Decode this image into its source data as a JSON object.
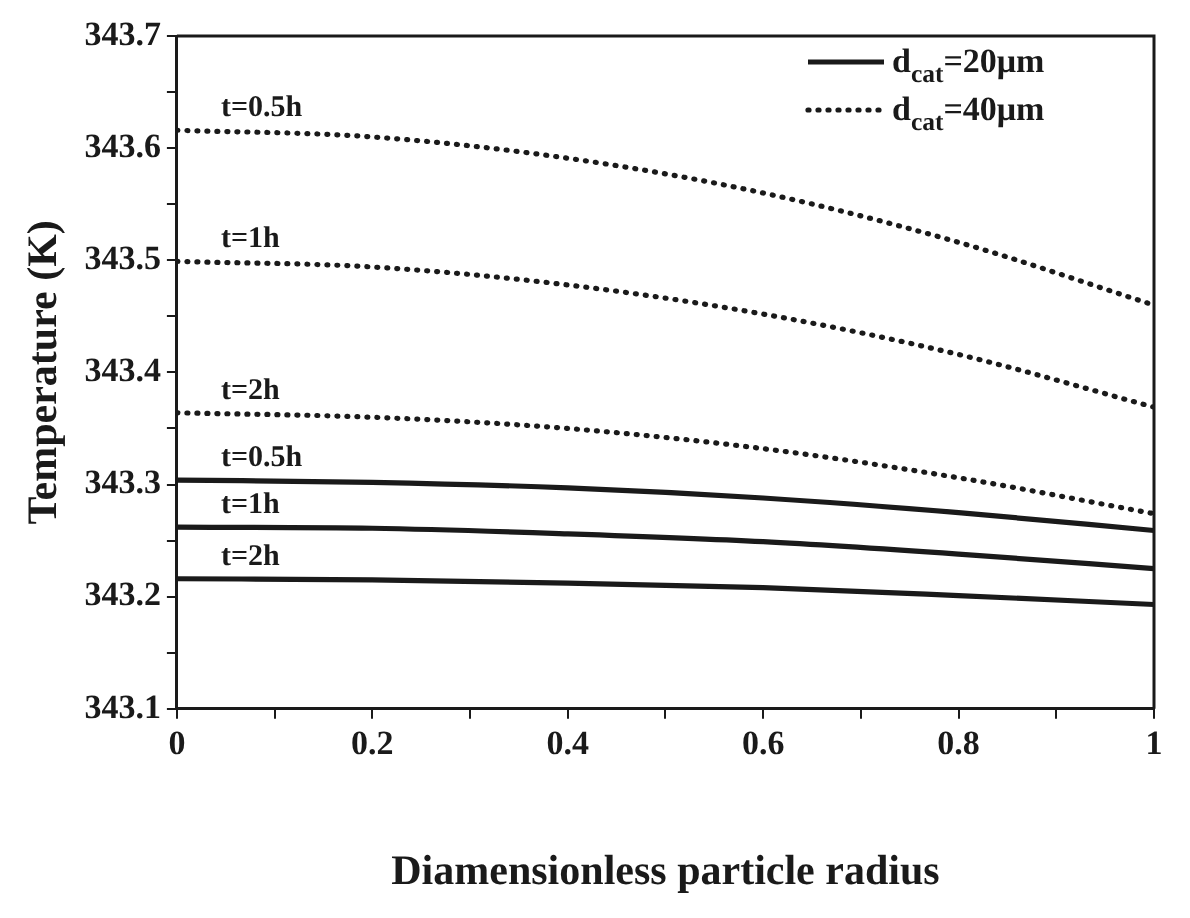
{
  "chart_data": {
    "type": "line",
    "xlabel": "Diamensionless particle radius",
    "ylabel": "Temperature (K)",
    "x": [
      0,
      0.2,
      0.4,
      0.6,
      0.8,
      1.0
    ],
    "xlim": [
      0,
      1
    ],
    "xticks": [
      0,
      {
        "value": 0.1,
        "label": null
      },
      0.2,
      {
        "value": 0.3,
        "label": null
      },
      0.4,
      {
        "value": 0.5,
        "label": null
      },
      0.6,
      {
        "value": 0.7,
        "label": null
      },
      0.8,
      {
        "value": 0.9,
        "label": null
      },
      1.0
    ],
    "ylim": [
      343.1,
      343.7
    ],
    "yticks": [
      343.1,
      {
        "value": 343.15,
        "label": null
      },
      343.2,
      {
        "value": 343.25,
        "label": null
      },
      343.3,
      {
        "value": 343.35,
        "label": null
      },
      343.4,
      {
        "value": 343.45,
        "label": null
      },
      343.5,
      {
        "value": 343.55,
        "label": null
      },
      343.6,
      {
        "value": 343.65,
        "label": null
      },
      343.7
    ],
    "grid": false,
    "legend": "top right",
    "marker": "none",
    "series": [
      {
        "name": "d$_{cat}$=20μm",
        "color": "#1a1a1a",
        "line_style": "solid",
        "values": [
          343.304,
          343.302,
          343.297,
          343.288,
          343.275,
          343.259
        ]
      },
      {
        "color": "#1a1a1a",
        "line_style": "solid",
        "values": [
          343.262,
          343.261,
          343.256,
          343.249,
          343.238,
          343.225
        ]
      },
      {
        "color": "#1a1a1a",
        "line_style": "solid",
        "values": [
          343.216,
          343.215,
          343.212,
          343.208,
          343.201,
          343.193
        ]
      },
      {
        "name": "d$_{cat}$=40μm",
        "color": "#1a1a1a",
        "line_style": "dotted",
        "values": [
          343.616,
          343.61,
          343.591,
          343.56,
          343.516,
          343.46
        ]
      },
      {
        "color": "#1a1a1a",
        "line_style": "dotted",
        "values": [
          343.499,
          343.494,
          343.478,
          343.452,
          343.416,
          343.369
        ]
      },
      {
        "color": "#1a1a1a",
        "line_style": "dotted",
        "values": [
          343.364,
          343.36,
          343.35,
          343.332,
          343.306,
          343.274
        ]
      }
    ],
    "annotations": [
      "t=0.5h",
      "t=1h",
      "t=2h",
      "t=0.5h",
      "t=1h",
      "t=2h"
    ]
  }
}
